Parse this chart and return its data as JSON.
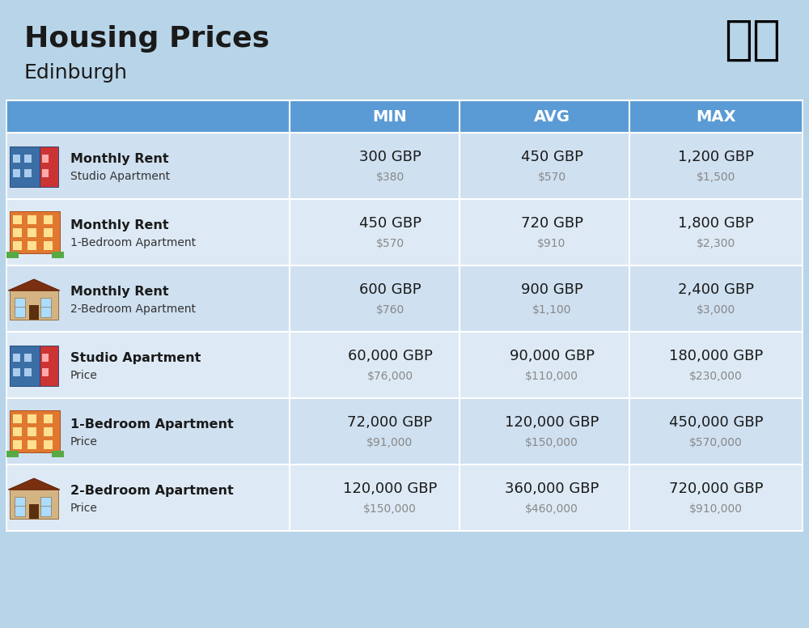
{
  "title": "Housing Prices",
  "subtitle": "Edinburgh",
  "background_color": "#b8d4e8",
  "header_color": "#5b9bd5",
  "row_colors": [
    "#cfe0f0",
    "#ddeaf5"
  ],
  "header_text_color": "#ffffff",
  "col_headers": [
    "MIN",
    "AVG",
    "MAX"
  ],
  "rows": [
    {
      "label_bold": "Monthly Rent",
      "label_sub": "Studio Apartment",
      "min_gbp": "300 GBP",
      "min_usd": "$380",
      "avg_gbp": "450 GBP",
      "avg_usd": "$570",
      "max_gbp": "1,200 GBP",
      "max_usd": "$1,500",
      "icon": "studio_blue"
    },
    {
      "label_bold": "Monthly Rent",
      "label_sub": "1-Bedroom Apartment",
      "min_gbp": "450 GBP",
      "min_usd": "$570",
      "avg_gbp": "720 GBP",
      "avg_usd": "$910",
      "max_gbp": "1,800 GBP",
      "max_usd": "$2,300",
      "icon": "apt_orange"
    },
    {
      "label_bold": "Monthly Rent",
      "label_sub": "2-Bedroom Apartment",
      "min_gbp": "600 GBP",
      "min_usd": "$760",
      "avg_gbp": "900 GBP",
      "avg_usd": "$1,100",
      "max_gbp": "2,400 GBP",
      "max_usd": "$3,000",
      "icon": "house_tan"
    },
    {
      "label_bold": "Studio Apartment",
      "label_sub": "Price",
      "min_gbp": "60,000 GBP",
      "min_usd": "$76,000",
      "avg_gbp": "90,000 GBP",
      "avg_usd": "$110,000",
      "max_gbp": "180,000 GBP",
      "max_usd": "$230,000",
      "icon": "studio_blue"
    },
    {
      "label_bold": "1-Bedroom Apartment",
      "label_sub": "Price",
      "min_gbp": "72,000 GBP",
      "min_usd": "$91,000",
      "avg_gbp": "120,000 GBP",
      "avg_usd": "$150,000",
      "max_gbp": "450,000 GBP",
      "max_usd": "$570,000",
      "icon": "apt_orange"
    },
    {
      "label_bold": "2-Bedroom Apartment",
      "label_sub": "Price",
      "min_gbp": "120,000 GBP",
      "min_usd": "$150,000",
      "avg_gbp": "360,000 GBP",
      "avg_usd": "$460,000",
      "max_gbp": "720,000 GBP",
      "max_usd": "$910,000",
      "icon": "house_tan"
    }
  ]
}
